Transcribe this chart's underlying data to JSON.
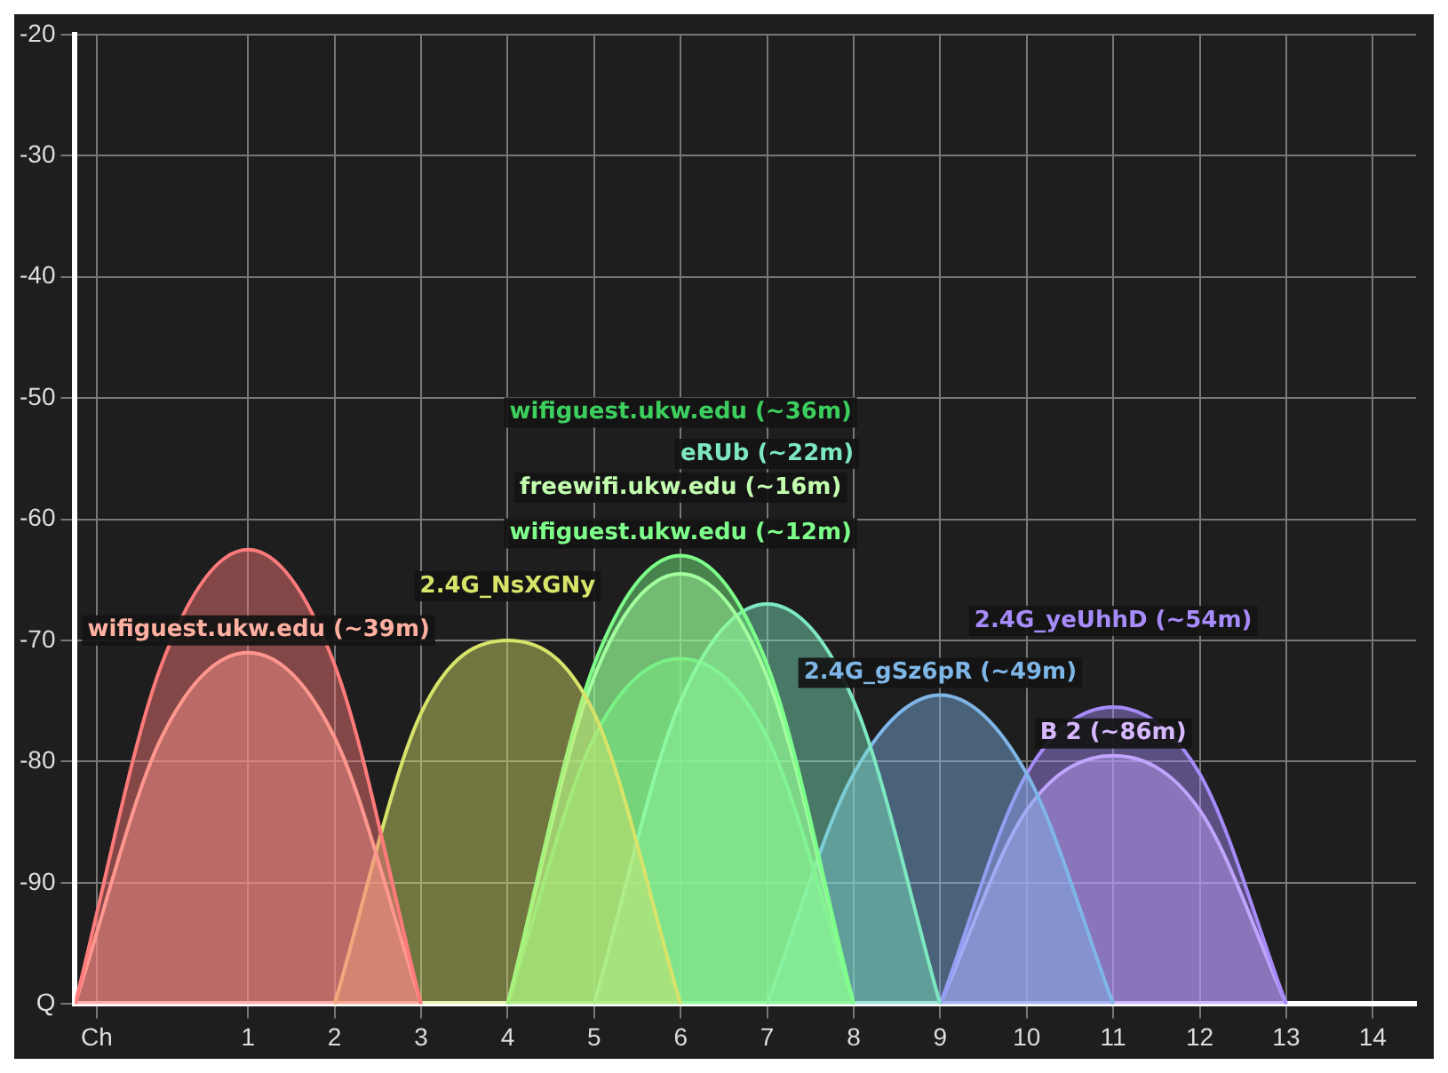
{
  "chart_data": {
    "type": "area",
    "xlim": [
      -1,
      14.5
    ],
    "ylim": [
      -100,
      -20
    ],
    "xticks": [
      {
        "value": -0.75,
        "label": "Ch"
      },
      1,
      2,
      3,
      4,
      5,
      6,
      7,
      8,
      9,
      10,
      11,
      12,
      13,
      14
    ],
    "yticks": [
      {
        "value": -100,
        "label": "Q"
      },
      -90,
      -80,
      -70,
      -60,
      -50,
      -40,
      -30,
      -20
    ],
    "grid": true,
    "legend": false,
    "marker": "none",
    "series": [
      {
        "color": "#ff7b7b",
        "x": [
          -1,
          0,
          1,
          2,
          3
        ],
        "values": [
          -100,
          -72,
          -62.5,
          -72,
          -100
        ]
      },
      {
        "name": "wifiguest.ukw.edu (~39m)",
        "color": "#ffb0a0",
        "x": [
          -1,
          0,
          1,
          2,
          3
        ],
        "values": [
          -100,
          -78,
          -71,
          -78,
          -100
        ]
      },
      {
        "name": "2.4G_NsXGNy",
        "color": "#d8e36a",
        "x": [
          2,
          3,
          4,
          5,
          6
        ],
        "values": [
          -100,
          -76,
          -70,
          -76,
          -100
        ]
      },
      {
        "name": "wifiguest.ukw.edu (~12m)",
        "color": "#7dff8a",
        "x": [
          4,
          5,
          6,
          7,
          8
        ],
        "values": [
          -100,
          -72,
          -63,
          -72,
          -100
        ]
      },
      {
        "name": "freewifi.ukw.edu (~16m)",
        "color": "#c4ffb0",
        "x": [
          4,
          5,
          6,
          7,
          8
        ],
        "values": [
          -100,
          -73,
          -64.5,
          -73,
          -100
        ]
      },
      {
        "name": "eRUb (~22m)",
        "color": "#7de8c0",
        "x": [
          5,
          6,
          7,
          8,
          9
        ],
        "values": [
          -100,
          -75,
          -67,
          -75,
          -100
        ]
      },
      {
        "name": "wifiguest.ukw.edu (~36m)",
        "color": "#3ccf5e",
        "x": [
          4,
          5,
          6,
          7,
          8
        ],
        "values": [
          -100,
          -78,
          -71.5,
          -78,
          -100
        ]
      },
      {
        "name": "2.4G_gSz6pR (~49m)",
        "color": "#7fb6e8",
        "x": [
          7,
          8,
          9,
          10,
          11
        ],
        "values": [
          -100,
          -81,
          -74.5,
          -81,
          -100
        ]
      },
      {
        "name": "2.4G_yeUhhD (~54m)",
        "color": "#a78bfa",
        "x": [
          9,
          10,
          11,
          12,
          13
        ],
        "values": [
          -100,
          -81,
          -75.5,
          -81,
          -100
        ]
      },
      {
        "name": "B 2 (~86m)",
        "color": "#d6b8ff",
        "x": [
          9,
          10,
          11,
          12,
          13
        ],
        "values": [
          -100,
          -84,
          -79.5,
          -84,
          -100
        ]
      }
    ]
  }
}
